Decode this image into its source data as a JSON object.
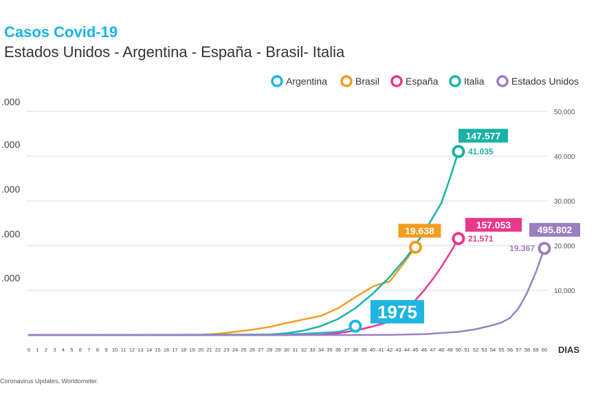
{
  "header": {
    "title": "Casos Covid-19",
    "subtitle": "Estados Unidos - Argentina - España - Brasil- Italia"
  },
  "source": "Coronavirus Updates, Worldometer.",
  "chart_data": {
    "type": "line",
    "xlabel": "DIAS",
    "x": [
      0,
      1,
      2,
      3,
      4,
      5,
      6,
      7,
      8,
      9,
      10,
      11,
      12,
      13,
      14,
      15,
      16,
      17,
      18,
      19,
      20,
      21,
      22,
      23,
      24,
      25,
      26,
      27,
      28,
      29,
      30,
      31,
      32,
      33,
      34,
      35,
      36,
      37,
      38,
      39,
      40,
      41,
      42,
      43,
      44,
      45,
      46,
      47,
      48,
      49,
      50,
      51,
      52,
      53,
      54,
      55,
      56,
      57,
      58,
      59,
      60
    ],
    "left_axis_ticks": [
      ".000",
      ".000",
      ".000",
      ".000",
      ".000"
    ],
    "left_axis_tick_values": [
      50000,
      40000,
      30000,
      20000,
      10000
    ],
    "right_axis_ticks": [
      "50.000",
      "40.000",
      "30.000",
      "20.000",
      "10.000"
    ],
    "right_axis_tick_values": [
      50000,
      40000,
      30000,
      20000,
      10000
    ],
    "ylim": [
      0,
      50000
    ],
    "grid": true,
    "legend_position": "top-right",
    "series": [
      {
        "name": "Argentina",
        "color": "#1fb5e3",
        "points": [
          [
            0,
            0
          ],
          [
            10,
            0
          ],
          [
            20,
            30
          ],
          [
            25,
            60
          ],
          [
            30,
            150
          ],
          [
            32,
            300
          ],
          [
            34,
            500
          ],
          [
            36,
            700
          ],
          [
            37,
            1200
          ],
          [
            38,
            1975
          ]
        ],
        "end_value": "1975",
        "end_label": ""
      },
      {
        "name": "Brasil",
        "color": "#f39c1f",
        "points": [
          [
            0,
            0
          ],
          [
            20,
            50
          ],
          [
            22,
            300
          ],
          [
            24,
            700
          ],
          [
            26,
            1200
          ],
          [
            28,
            1800
          ],
          [
            30,
            2700
          ],
          [
            32,
            3500
          ],
          [
            34,
            4300
          ],
          [
            36,
            6000
          ],
          [
            38,
            8500
          ],
          [
            40,
            10800
          ],
          [
            41,
            11500
          ],
          [
            42,
            12000
          ],
          [
            43,
            14500
          ],
          [
            44,
            17000
          ],
          [
            45,
            19638
          ]
        ],
        "end_value": "19.638",
        "end_label": ""
      },
      {
        "name": "España",
        "color": "#e8388c",
        "points": [
          [
            0,
            0
          ],
          [
            30,
            0
          ],
          [
            34,
            100
          ],
          [
            36,
            400
          ],
          [
            38,
            1000
          ],
          [
            40,
            1900
          ],
          [
            42,
            3000
          ],
          [
            43,
            4200
          ],
          [
            44,
            5800
          ],
          [
            45,
            7800
          ],
          [
            46,
            10000
          ],
          [
            47,
            12500
          ],
          [
            48,
            15200
          ],
          [
            49,
            18300
          ],
          [
            50,
            21571
          ]
        ],
        "end_value": "157.053",
        "end_label": "21.571"
      },
      {
        "name": "Italia",
        "color": "#18b2a6",
        "points": [
          [
            0,
            0
          ],
          [
            28,
            100
          ],
          [
            30,
            400
          ],
          [
            32,
            1000
          ],
          [
            34,
            2000
          ],
          [
            36,
            3600
          ],
          [
            38,
            6000
          ],
          [
            40,
            9200
          ],
          [
            42,
            13000
          ],
          [
            44,
            17500
          ],
          [
            46,
            23000
          ],
          [
            48,
            29500
          ],
          [
            49,
            35000
          ],
          [
            50,
            41035
          ]
        ],
        "end_value": "147.577",
        "end_label": "41.035"
      },
      {
        "name": "Estados Unidos",
        "color": "#9b7fc1",
        "points": [
          [
            0,
            0
          ],
          [
            38,
            0
          ],
          [
            42,
            50
          ],
          [
            46,
            200
          ],
          [
            50,
            700
          ],
          [
            52,
            1300
          ],
          [
            54,
            2200
          ],
          [
            55,
            2800
          ],
          [
            56,
            3800
          ],
          [
            57,
            6000
          ],
          [
            58,
            9500
          ],
          [
            59,
            14000
          ],
          [
            60,
            19367
          ]
        ],
        "end_value": "495.802",
        "end_label": "19.367"
      }
    ]
  }
}
